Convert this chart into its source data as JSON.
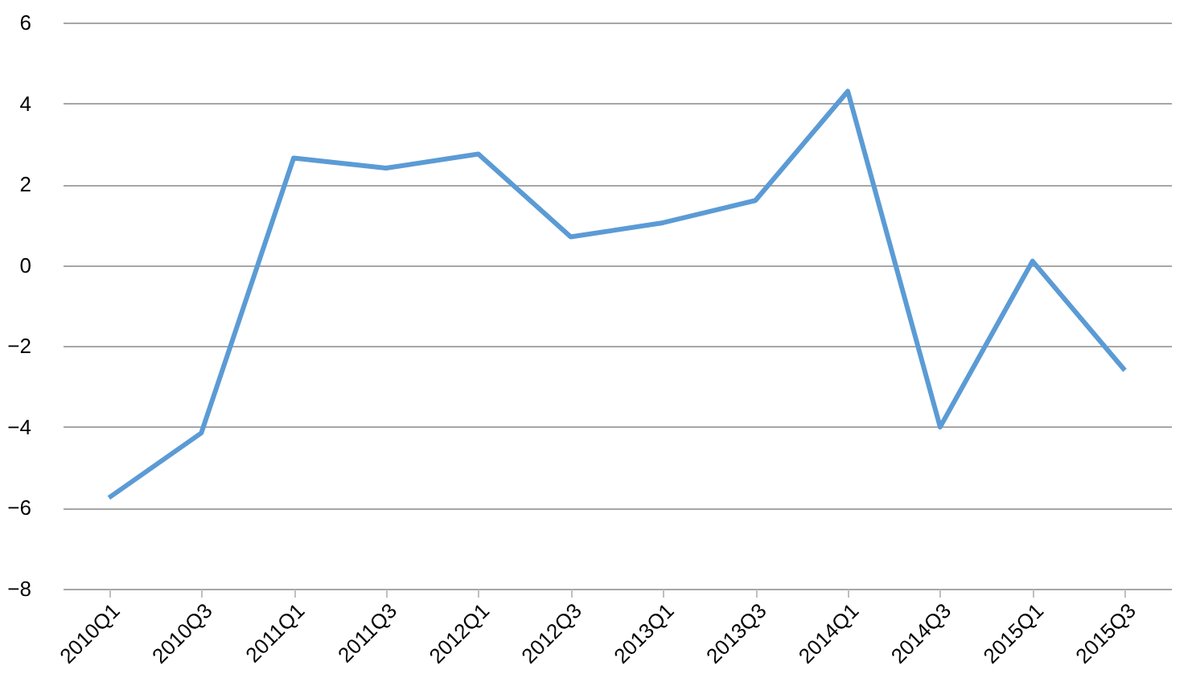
{
  "chart_data": {
    "type": "line",
    "categories": [
      "2010Q1",
      "2010Q3",
      "2011Q1",
      "2011Q3",
      "2012Q1",
      "2012Q3",
      "2013Q1",
      "2013Q3",
      "2014Q1",
      "2014Q3",
      "2015Q1",
      "2015Q3"
    ],
    "series": [
      {
        "color": "#5b9bd5",
        "values": [
          -5.75,
          -4.15,
          2.65,
          2.4,
          2.75,
          0.7,
          1.05,
          1.6,
          4.3,
          -4.0,
          0.1,
          -2.6
        ]
      }
    ],
    "ylim": [
      -8,
      6
    ],
    "yticks": [
      -8,
      -6,
      -4,
      -2,
      0,
      2,
      4,
      6
    ],
    "grid": "y",
    "marker": "none",
    "line_style": "solid"
  }
}
